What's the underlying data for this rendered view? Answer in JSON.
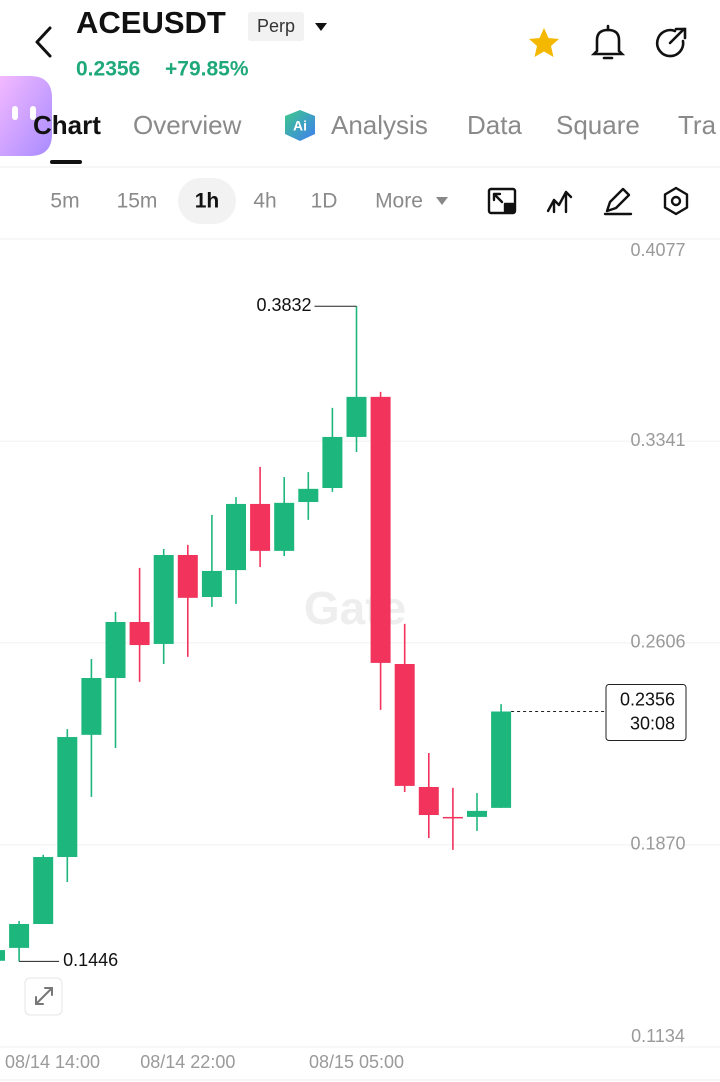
{
  "header": {
    "title": "ACEUSDT",
    "badge": "Perp",
    "price": "0.2356",
    "change": "+79.85%"
  },
  "tabs": [
    "Chart",
    "Overview",
    "Analysis",
    "Data",
    "Square",
    "Tra"
  ],
  "intervals": [
    "5m",
    "15m",
    "1h",
    "4h",
    "1D",
    "More"
  ],
  "chart_data": {
    "type": "candlestick",
    "watermark": "Gate",
    "categories": [
      "08/14 14:00",
      null,
      null,
      null,
      null,
      null,
      null,
      null,
      "08/14 22:00",
      null,
      null,
      null,
      null,
      null,
      null,
      "08/15 05:00",
      null,
      null,
      null,
      null,
      null,
      null
    ],
    "open": [
      0.1448,
      0.1495,
      0.1582,
      0.1826,
      0.2271,
      0.2478,
      0.2682,
      0.2602,
      0.2926,
      0.2773,
      0.2871,
      0.3112,
      0.2941,
      0.3119,
      0.317,
      0.3356,
      0.3502,
      0.2529,
      0.2081,
      0.1972,
      0.1972,
      0.2005
    ],
    "high": [
      0.1506,
      0.1593,
      0.1834,
      0.2292,
      0.2547,
      0.2719,
      0.2879,
      0.2948,
      0.2963,
      0.3072,
      0.3137,
      0.3247,
      0.321,
      0.3228,
      0.3462,
      0.3832,
      0.352,
      0.2675,
      0.2205,
      0.2078,
      0.2059,
      0.2383
    ],
    "low": [
      0.1447,
      0.1446,
      0.1582,
      0.1735,
      0.2045,
      0.2223,
      0.2464,
      0.2529,
      0.2555,
      0.2737,
      0.2748,
      0.2882,
      0.2922,
      0.3054,
      0.3156,
      0.3301,
      0.2362,
      0.2063,
      0.1895,
      0.1852,
      0.1921,
      0.2005
    ],
    "close": [
      0.1487,
      0.1582,
      0.1826,
      0.2263,
      0.2478,
      0.2682,
      0.2598,
      0.2926,
      0.277,
      0.2868,
      0.3112,
      0.2941,
      0.3116,
      0.3167,
      0.3356,
      0.3502,
      0.2533,
      0.2085,
      0.1979,
      0.1968,
      0.1994,
      0.2356
    ],
    "up_color": "#1db77d",
    "down_color": "#f2335c",
    "ylim": [
      0.1134,
      0.4077
    ],
    "yticks": [
      0.4077,
      0.3341,
      0.2606,
      {
        "value": 0.187,
        "label": "0.1870"
      },
      0.1134
    ],
    "grid": true,
    "countdown": "30:08"
  }
}
